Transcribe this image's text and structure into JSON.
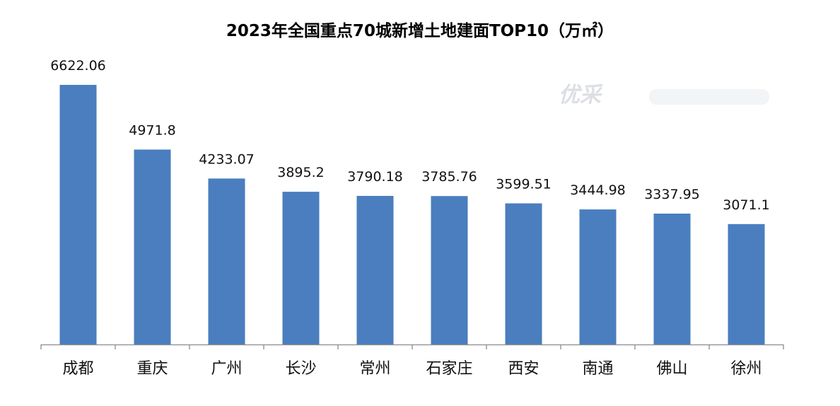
{
  "chart_data": {
    "type": "bar",
    "title": "2023年全国重点70城新增土地建面TOP10（万㎡）",
    "categories": [
      "成都",
      "重庆",
      "广州",
      "长沙",
      "常州",
      "石家庄",
      "西安",
      "南通",
      "佛山",
      "徐州"
    ],
    "values": [
      6622.06,
      4971.8,
      4233.07,
      3895.2,
      3790.18,
      3785.76,
      3599.51,
      3444.98,
      3337.95,
      3071.1
    ],
    "value_labels": [
      "6622.06",
      "4971.8",
      "4233.07",
      "3895.2",
      "3790.18",
      "3785.76",
      "3599.51",
      "3444.98",
      "3337.95",
      "3071.1"
    ],
    "ylim": [
      0,
      6622.06
    ],
    "xlabel": "",
    "ylabel": "",
    "grid": false,
    "legend": "none",
    "bar_color": "#4a7ebf",
    "axis_color": "#8c8c8c"
  },
  "watermark": {
    "logo_text": "优采"
  }
}
